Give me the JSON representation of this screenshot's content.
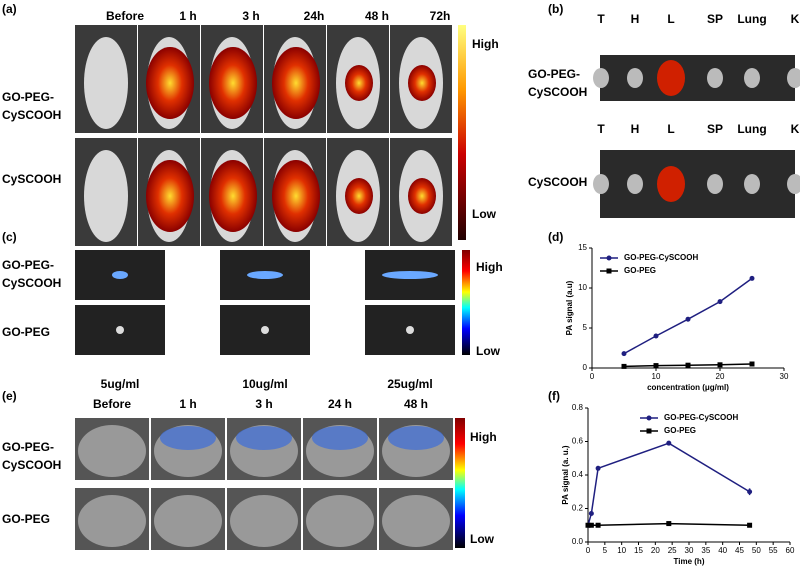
{
  "panels": {
    "a": {
      "label": "(a)",
      "columns": [
        "Before",
        "1 h",
        "3 h",
        "24h",
        "48 h",
        "72h"
      ],
      "rows": [
        [
          "GO-PEG-",
          "CySCOOH"
        ],
        [
          "CySCOOH"
        ]
      ],
      "scale": [
        "High",
        "Low"
      ]
    },
    "b": {
      "label": "(b)",
      "organs_top": [
        "T",
        "H",
        "L",
        "SP",
        "Lung",
        "K"
      ],
      "organs_bottom": [
        "T",
        "H",
        "L",
        "SP",
        "Lung",
        "K"
      ],
      "rows": [
        [
          "GO-PEG-",
          "CySCOOH"
        ],
        [
          "CySCOOH"
        ]
      ]
    },
    "c": {
      "label": "(c)",
      "rows": [
        [
          "GO-PEG-",
          "CySCOOH"
        ],
        [
          "GO-PEG"
        ]
      ],
      "columns": [
        "5ug/ml",
        "10ug/ml",
        "25ug/ml"
      ],
      "scale": [
        "High",
        "Low"
      ]
    },
    "d": {
      "label": "(d)"
    },
    "e": {
      "label": "(e)",
      "columns": [
        "Before",
        "1 h",
        "3 h",
        "24 h",
        "48 h"
      ],
      "rows": [
        [
          "GO-PEG-",
          "CySCOOH"
        ],
        [
          "GO-PEG"
        ]
      ],
      "scale": [
        "High",
        "Low"
      ]
    },
    "f": {
      "label": "(f)"
    }
  },
  "chart_data": [
    {
      "type": "line",
      "xlabel": "concentration (μg/ml)",
      "ylabel": "PA signal (a.u)",
      "xlim": [
        0,
        30
      ],
      "xticks": [
        0,
        10,
        20,
        30
      ],
      "ylim": [
        0,
        15
      ],
      "yticks": [
        0,
        5,
        10,
        15
      ],
      "legend": "upper left",
      "series": [
        {
          "name": "GO-PEG-CySCOOH",
          "color": "#1f1f80",
          "marker": "circle",
          "x": [
            5,
            10,
            15,
            20,
            25
          ],
          "values": [
            1.8,
            4.0,
            6.1,
            8.3,
            11.2
          ]
        },
        {
          "name": "GO-PEG",
          "color": "#000000",
          "marker": "square",
          "x": [
            5,
            10,
            15,
            20,
            25
          ],
          "values": [
            0.2,
            0.3,
            0.35,
            0.4,
            0.5
          ]
        }
      ]
    },
    {
      "type": "line",
      "xlabel": "Time (h)",
      "ylabel": "PA signal (a. u.)",
      "xlim": [
        0,
        60
      ],
      "xticks": [
        0,
        5,
        10,
        15,
        20,
        25,
        30,
        35,
        40,
        45,
        50,
        55,
        60
      ],
      "ylim": [
        0,
        0.8
      ],
      "yticks": [
        {
          "value": 0,
          "label": "0.0"
        },
        0.2,
        0.4,
        0.6,
        0.8
      ],
      "legend": "upper right",
      "series": [
        {
          "name": "GO-PEG-CySCOOH",
          "color": "#1f1f80",
          "marker": "circle",
          "x": [
            0,
            1,
            3,
            24,
            48
          ],
          "values": [
            0.1,
            0.17,
            0.44,
            0.59,
            0.3
          ],
          "errors": [
            0.01,
            0.01,
            0.01,
            0.01,
            0.02
          ]
        },
        {
          "name": "GO-PEG",
          "color": "#000000",
          "marker": "square",
          "x": [
            0,
            1,
            3,
            24,
            48
          ],
          "values": [
            0.1,
            0.1,
            0.1,
            0.11,
            0.1
          ]
        }
      ]
    }
  ]
}
